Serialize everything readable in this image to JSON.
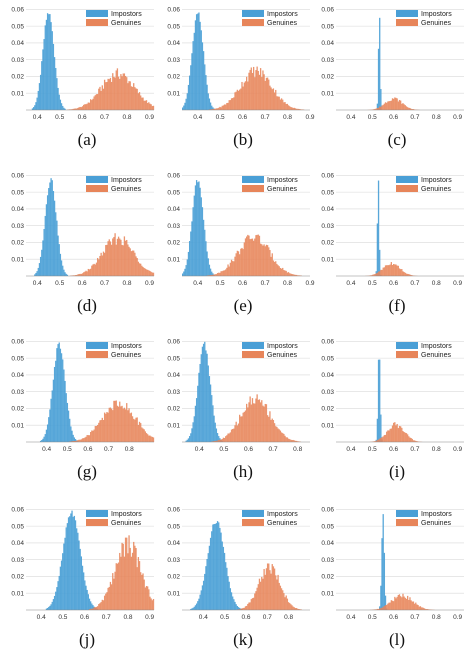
{
  "figure": {
    "background": "#ffffff"
  },
  "colors": {
    "impostors": "#4a9fd6",
    "genuines": "#e7855a",
    "overlap": "#9b6f88"
  },
  "legend": {
    "impostors": "Impostors",
    "genuines": "Genuines"
  },
  "chart_data": [
    {
      "label": "(a)",
      "type": "histogram",
      "xticks": [
        "0.4",
        "0.5",
        "0.6",
        "0.7",
        "0.8",
        "0.9"
      ],
      "yticks": [
        "0.01",
        "0.02",
        "0.03",
        "0.04",
        "0.05",
        "0.06"
      ],
      "xlim": [
        0.35,
        0.92
      ],
      "ylim": [
        0,
        0.062
      ],
      "legend_position": "top-right",
      "grid": true,
      "series": [
        {
          "name": "Impostors",
          "mean": 0.45,
          "sd": 0.025,
          "peak": 0.06
        },
        {
          "name": "Genuines",
          "mean": 0.76,
          "sd": 0.075,
          "peak": 0.025
        }
      ]
    },
    {
      "label": "(b)",
      "type": "histogram",
      "xticks": [
        "0.4",
        "0.5",
        "0.6",
        "0.7",
        "0.8",
        "0.9"
      ],
      "yticks": [
        "0.01",
        "0.02",
        "0.03",
        "0.04",
        "0.05",
        "0.06"
      ],
      "xlim": [
        0.33,
        0.9
      ],
      "ylim": [
        0,
        0.062
      ],
      "legend_position": "top-right",
      "grid": true,
      "series": [
        {
          "name": "Impostors",
          "mean": 0.4,
          "sd": 0.025,
          "peak": 0.06
        },
        {
          "name": "Genuines",
          "mean": 0.66,
          "sd": 0.07,
          "peak": 0.027
        }
      ]
    },
    {
      "label": "(c)",
      "type": "histogram",
      "xticks": [
        "0.4",
        "0.5",
        "0.6",
        "0.7",
        "0.8",
        "0.9"
      ],
      "yticks": [
        "0.01",
        "0.02",
        "0.03",
        "0.04",
        "0.05",
        "0.06"
      ],
      "xlim": [
        0.33,
        0.93
      ],
      "ylim": [
        0,
        0.062
      ],
      "legend_position": "top-right",
      "grid": true,
      "series": [
        {
          "name": "Impostors",
          "mean": 0.533,
          "sd": 0.004,
          "peak": 0.06
        },
        {
          "name": "Genuines",
          "mean": 0.6,
          "sd": 0.04,
          "peak": 0.008
        }
      ]
    },
    {
      "label": "(d)",
      "type": "histogram",
      "xticks": [
        "0.4",
        "0.5",
        "0.6",
        "0.7",
        "0.8",
        "0.9"
      ],
      "yticks": [
        "0.01",
        "0.02",
        "0.03",
        "0.04",
        "0.05",
        "0.06"
      ],
      "xlim": [
        0.35,
        0.92
      ],
      "ylim": [
        0,
        0.062
      ],
      "legend_position": "top-right",
      "grid": true,
      "series": [
        {
          "name": "Impostors",
          "mean": 0.46,
          "sd": 0.025,
          "peak": 0.06
        },
        {
          "name": "Genuines",
          "mean": 0.76,
          "sd": 0.07,
          "peak": 0.026
        }
      ]
    },
    {
      "label": "(e)",
      "type": "histogram",
      "xticks": [
        "0.4",
        "0.5",
        "0.6",
        "0.7",
        "0.8",
        "0.9"
      ],
      "yticks": [
        "0.01",
        "0.02",
        "0.03",
        "0.04",
        "0.05",
        "0.06"
      ],
      "xlim": [
        0.33,
        0.9
      ],
      "ylim": [
        0,
        0.062
      ],
      "legend_position": "top-right",
      "grid": true,
      "series": [
        {
          "name": "Impostors",
          "mean": 0.4,
          "sd": 0.025,
          "peak": 0.06
        },
        {
          "name": "Genuines",
          "mean": 0.65,
          "sd": 0.07,
          "peak": 0.027
        }
      ]
    },
    {
      "label": "(f)",
      "type": "histogram",
      "xticks": [
        "0.4",
        "0.5",
        "0.6",
        "0.7",
        "0.8",
        "0.9"
      ],
      "yticks": [
        "0.01",
        "0.02",
        "0.03",
        "0.04",
        "0.05",
        "0.06"
      ],
      "xlim": [
        0.33,
        0.93
      ],
      "ylim": [
        0,
        0.062
      ],
      "legend_position": "top-right",
      "grid": true,
      "series": [
        {
          "name": "Impostors",
          "mean": 0.528,
          "sd": 0.004,
          "peak": 0.06
        },
        {
          "name": "Genuines",
          "mean": 0.59,
          "sd": 0.04,
          "peak": 0.009
        }
      ]
    },
    {
      "label": "(g)",
      "type": "histogram",
      "xticks": [
        "0.4",
        "0.5",
        "0.6",
        "0.7",
        "0.8"
      ],
      "yticks": [
        "0.01",
        "0.02",
        "0.03",
        "0.04",
        "0.05",
        "0.06"
      ],
      "xlim": [
        0.3,
        0.92
      ],
      "ylim": [
        0,
        0.062
      ],
      "legend_position": "top-right",
      "grid": true,
      "series": [
        {
          "name": "Impostors",
          "mean": 0.46,
          "sd": 0.03,
          "peak": 0.06
        },
        {
          "name": "Genuines",
          "mean": 0.75,
          "sd": 0.08,
          "peak": 0.027
        }
      ]
    },
    {
      "label": "(h)",
      "type": "histogram",
      "xticks": [
        "0.4",
        "0.5",
        "0.6",
        "0.7",
        "0.8"
      ],
      "yticks": [
        "0.01",
        "0.02",
        "0.03",
        "0.04",
        "0.05",
        "0.06"
      ],
      "xlim": [
        0.33,
        0.85
      ],
      "ylim": [
        0,
        0.062
      ],
      "legend_position": "top-right",
      "grid": true,
      "series": [
        {
          "name": "Impostors",
          "mean": 0.42,
          "sd": 0.025,
          "peak": 0.06
        },
        {
          "name": "Genuines",
          "mean": 0.63,
          "sd": 0.06,
          "peak": 0.03
        }
      ]
    },
    {
      "label": "(i)",
      "type": "histogram",
      "xticks": [
        "0.4",
        "0.5",
        "0.6",
        "0.7",
        "0.8",
        "0.9"
      ],
      "yticks": [
        "0.01",
        "0.02",
        "0.03",
        "0.04",
        "0.05",
        "0.06"
      ],
      "xlim": [
        0.33,
        0.93
      ],
      "ylim": [
        0,
        0.062
      ],
      "legend_position": "top-right",
      "grid": true,
      "series": [
        {
          "name": "Impostors",
          "mean": 0.532,
          "sd": 0.005,
          "peak": 0.06
        },
        {
          "name": "Genuines",
          "mean": 0.61,
          "sd": 0.04,
          "peak": 0.012
        }
      ]
    },
    {
      "label": "(j)",
      "type": "histogram",
      "xticks": [
        "0.4",
        "0.5",
        "0.6",
        "0.7",
        "0.8",
        "0.9"
      ],
      "yticks": [
        "0.01",
        "0.02",
        "0.03",
        "0.04",
        "0.05",
        "0.06"
      ],
      "xlim": [
        0.33,
        0.92
      ],
      "ylim": [
        0,
        0.062
      ],
      "legend_position": "top-right",
      "grid": true,
      "series": [
        {
          "name": "Impostors",
          "mean": 0.54,
          "sd": 0.04,
          "peak": 0.06
        },
        {
          "name": "Genuines",
          "mean": 0.8,
          "sd": 0.06,
          "peak": 0.045
        }
      ]
    },
    {
      "label": "(k)",
      "type": "histogram",
      "xticks": [
        "0.4",
        "0.5",
        "0.6",
        "0.7",
        "0.8"
      ],
      "yticks": [
        "0.01",
        "0.02",
        "0.03",
        "0.04",
        "0.05",
        "0.06"
      ],
      "xlim": [
        0.3,
        0.9
      ],
      "ylim": [
        0,
        0.062
      ],
      "legend_position": "top-right",
      "grid": true,
      "series": [
        {
          "name": "Impostors",
          "mean": 0.46,
          "sd": 0.04,
          "peak": 0.055
        },
        {
          "name": "Genuines",
          "mean": 0.71,
          "sd": 0.05,
          "peak": 0.03
        }
      ]
    },
    {
      "label": "(l)",
      "type": "histogram",
      "xticks": [
        "0.4",
        "0.5",
        "0.6",
        "0.7",
        "0.8",
        "0.9"
      ],
      "yticks": [
        "0.01",
        "0.02",
        "0.03",
        "0.04",
        "0.05",
        "0.06"
      ],
      "xlim": [
        0.33,
        0.93
      ],
      "ylim": [
        0,
        0.062
      ],
      "legend_position": "top-right",
      "grid": true,
      "series": [
        {
          "name": "Impostors",
          "mean": 0.55,
          "sd": 0.006,
          "peak": 0.06
        },
        {
          "name": "Genuines",
          "mean": 0.64,
          "sd": 0.05,
          "peak": 0.01
        }
      ]
    }
  ]
}
